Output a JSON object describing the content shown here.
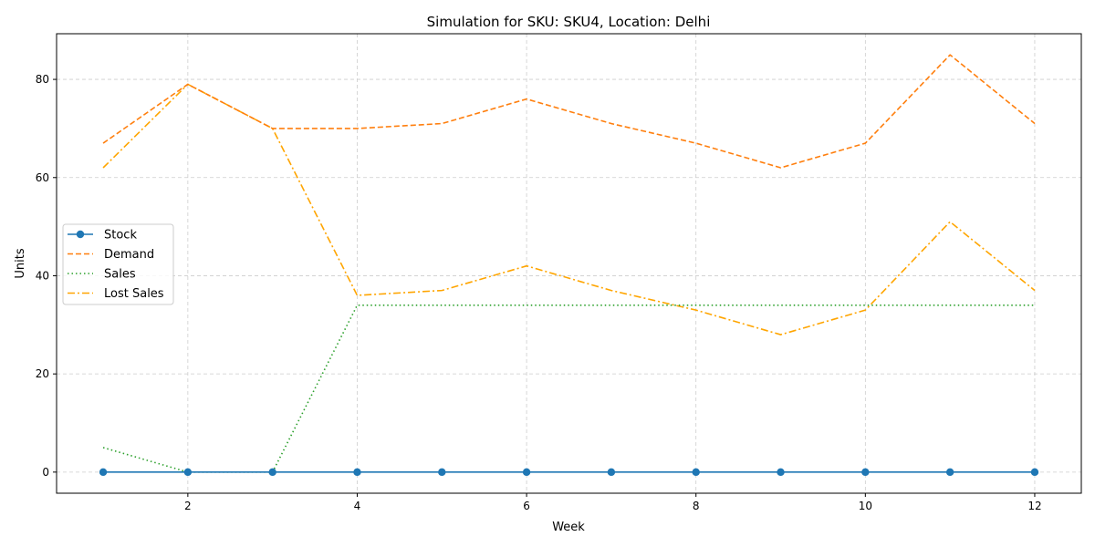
{
  "chart_data": {
    "type": "line",
    "title": "Simulation for SKU: SKU4, Location: Delhi",
    "xlabel": "Week",
    "ylabel": "Units",
    "x": [
      1,
      2,
      3,
      4,
      5,
      6,
      7,
      8,
      9,
      10,
      11,
      12
    ],
    "xlim": [
      0.45,
      12.55
    ],
    "ylim": [
      -4.3,
      89.3
    ],
    "xticks": [
      2,
      4,
      6,
      8,
      10,
      12
    ],
    "yticks": [
      0,
      20,
      40,
      60,
      80
    ],
    "grid": true,
    "legend_position": "center-left",
    "series": [
      {
        "name": "Stock",
        "values": [
          0,
          0,
          0,
          0,
          0,
          0,
          0,
          0,
          0,
          0,
          0,
          0
        ],
        "color": "#1f77b4",
        "style": "solid",
        "marker": "circle"
      },
      {
        "name": "Demand",
        "values": [
          67,
          79,
          70,
          70,
          71,
          76,
          71,
          67,
          62,
          67,
          85,
          71
        ],
        "color": "#ff7f0e",
        "style": "dashed",
        "marker": "none"
      },
      {
        "name": "Sales",
        "values": [
          5,
          0,
          0,
          34,
          34,
          34,
          34,
          34,
          34,
          34,
          34,
          34
        ],
        "color": "#2ca02c",
        "style": "dotted",
        "marker": "none"
      },
      {
        "name": "Lost Sales",
        "values": [
          62,
          79,
          70,
          36,
          37,
          42,
          37,
          33,
          28,
          33,
          51,
          37
        ],
        "color": "#ffa500",
        "style": "dashdot",
        "marker": "none"
      }
    ]
  }
}
